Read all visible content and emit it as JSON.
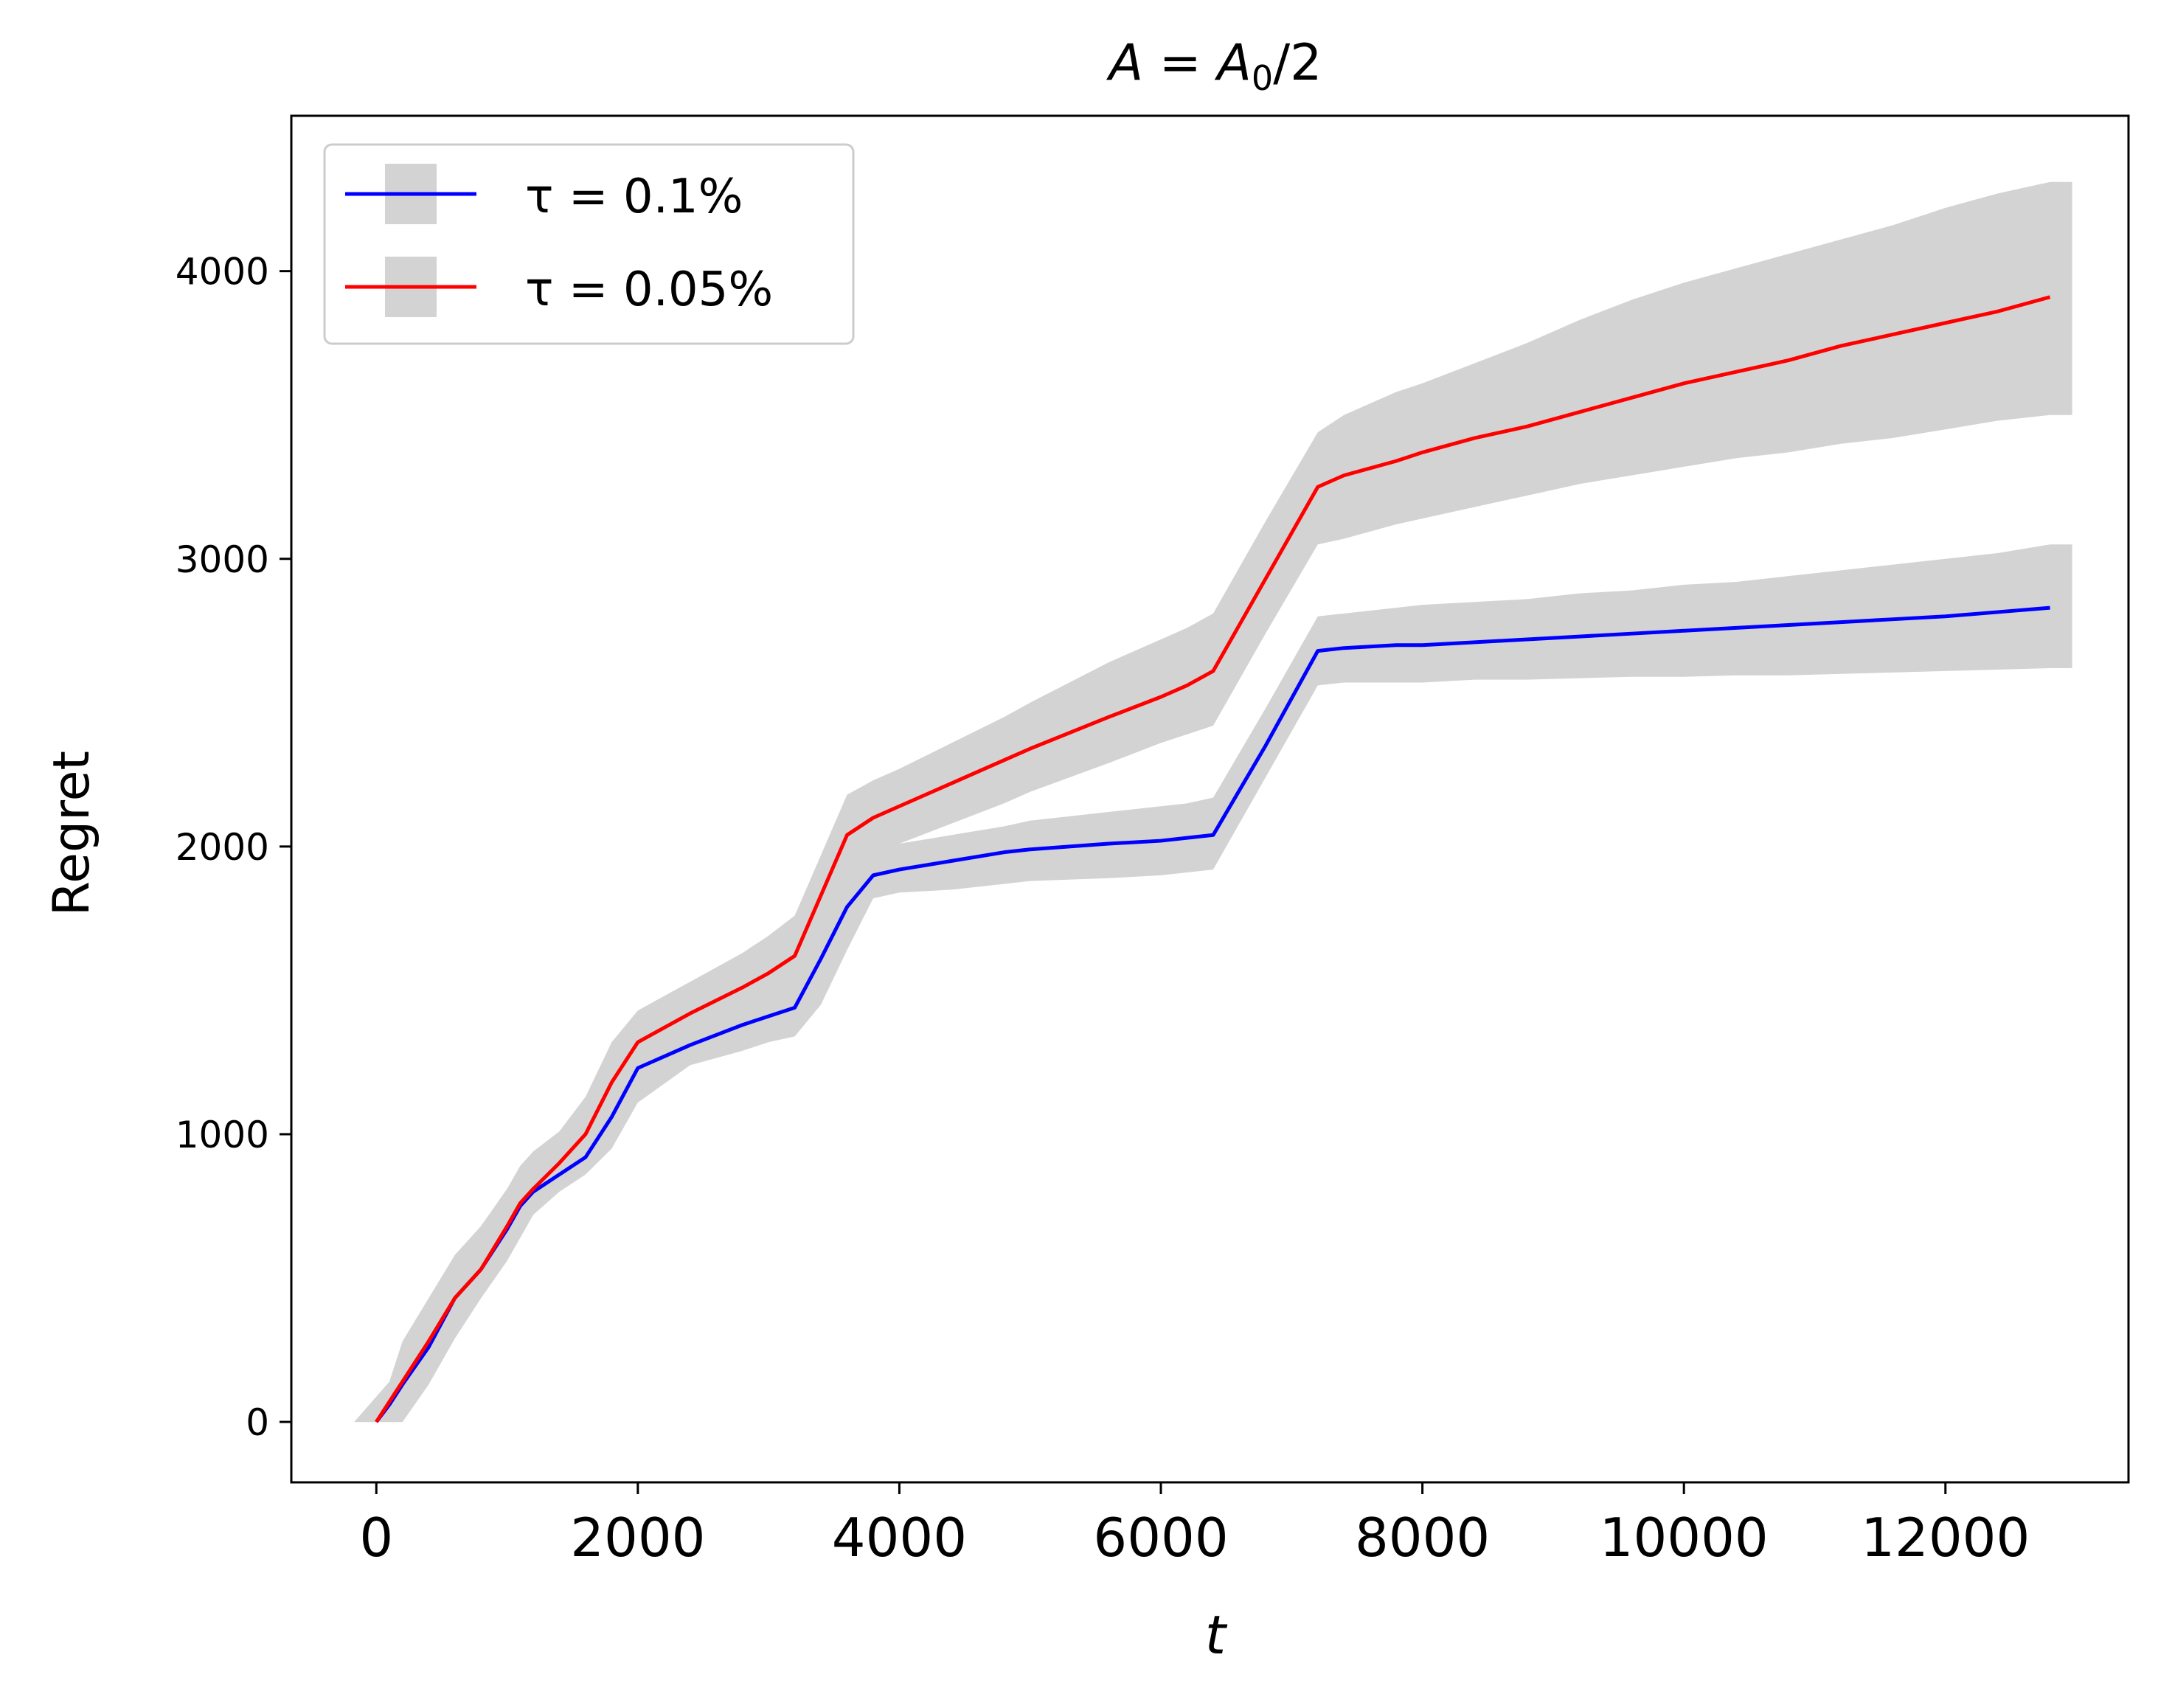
{
  "chart_data": {
    "type": "line",
    "title": "A = A0/2",
    "title_parts": {
      "lhs": "A",
      "rhs_base": "A",
      "rhs_sub": "0",
      "rhs_tail": "/2"
    },
    "xlabel": "t",
    "ylabel": "Regret",
    "xlim": [
      -650,
      13400
    ],
    "ylim": [
      -210,
      4540
    ],
    "x_ticks": [
      0,
      2000,
      4000,
      6000,
      8000,
      10000,
      12000
    ],
    "y_ticks": [
      0,
      1000,
      2000,
      3000,
      4000
    ],
    "grid": false,
    "legend_position": "top-left",
    "band_color": "#d3d3d3",
    "series": [
      {
        "name": "τ = 0.1%",
        "color": "#0000ff",
        "x": [
          0,
          100,
          200,
          400,
          600,
          800,
          1000,
          1100,
          1200,
          1400,
          1600,
          1800,
          2000,
          2400,
          2800,
          3000,
          3200,
          3400,
          3600,
          3800,
          4000,
          4400,
          4800,
          5000,
          5600,
          6000,
          6200,
          6400,
          6800,
          7200,
          7400,
          7800,
          8000,
          8400,
          8800,
          9200,
          9600,
          10000,
          10400,
          10800,
          11200,
          11600,
          12000,
          12400,
          12800
        ],
        "y": [
          0,
          60,
          130,
          260,
          430,
          530,
          670,
          750,
          800,
          860,
          920,
          1060,
          1230,
          1310,
          1380,
          1410,
          1440,
          1610,
          1790,
          1900,
          1920,
          1950,
          1980,
          1990,
          2010,
          2020,
          2030,
          2040,
          2350,
          2680,
          2690,
          2700,
          2700,
          2710,
          2720,
          2730,
          2740,
          2750,
          2760,
          2770,
          2780,
          2790,
          2800,
          2815,
          2830
        ],
        "lower": [
          0,
          0,
          0,
          130,
          290,
          430,
          560,
          640,
          720,
          800,
          860,
          950,
          1110,
          1240,
          1290,
          1320,
          1340,
          1450,
          1640,
          1820,
          1840,
          1850,
          1870,
          1880,
          1890,
          1900,
          1910,
          1920,
          2240,
          2560,
          2570,
          2570,
          2570,
          2580,
          2580,
          2585,
          2590,
          2590,
          2595,
          2595,
          2600,
          2605,
          2610,
          2615,
          2620
        ],
        "upper": [
          0,
          130,
          270,
          400,
          580,
          680,
          810,
          880,
          920,
          980,
          1040,
          1230,
          1370,
          1430,
          1480,
          1510,
          1550,
          1780,
          1940,
          1990,
          2010,
          2040,
          2070,
          2090,
          2120,
          2140,
          2150,
          2170,
          2480,
          2800,
          2810,
          2830,
          2840,
          2850,
          2860,
          2880,
          2890,
          2910,
          2920,
          2940,
          2960,
          2980,
          3000,
          3020,
          3050
        ]
      },
      {
        "name": "τ = 0.05%",
        "color": "#ff0000",
        "x": [
          0,
          100,
          200,
          400,
          600,
          800,
          1000,
          1100,
          1200,
          1400,
          1600,
          1800,
          2000,
          2400,
          2800,
          3000,
          3200,
          3400,
          3600,
          3800,
          4000,
          4400,
          4800,
          5000,
          5600,
          6000,
          6200,
          6400,
          6800,
          7200,
          7400,
          7800,
          8000,
          8400,
          8800,
          9200,
          9600,
          10000,
          10400,
          10800,
          11200,
          11600,
          12000,
          12400,
          12800
        ],
        "y": [
          0,
          70,
          140,
          280,
          430,
          530,
          680,
          760,
          810,
          900,
          1000,
          1180,
          1320,
          1420,
          1510,
          1560,
          1620,
          1830,
          2040,
          2100,
          2140,
          2220,
          2300,
          2340,
          2450,
          2520,
          2560,
          2610,
          2930,
          3250,
          3290,
          3340,
          3370,
          3420,
          3460,
          3510,
          3560,
          3610,
          3650,
          3690,
          3740,
          3780,
          3820,
          3860,
          3910
        ],
        "lower": [
          0,
          0,
          0,
          130,
          290,
          430,
          560,
          640,
          720,
          820,
          900,
          1050,
          1220,
          1300,
          1380,
          1420,
          1460,
          1680,
          1900,
          1980,
          2010,
          2080,
          2150,
          2190,
          2290,
          2360,
          2390,
          2420,
          2740,
          3050,
          3070,
          3120,
          3140,
          3180,
          3220,
          3260,
          3290,
          3320,
          3350,
          3370,
          3400,
          3420,
          3450,
          3480,
          3500
        ],
        "upper": [
          0,
          140,
          280,
          430,
          580,
          680,
          810,
          890,
          940,
          1010,
          1130,
          1320,
          1430,
          1530,
          1630,
          1690,
          1760,
          1970,
          2180,
          2230,
          2270,
          2360,
          2450,
          2500,
          2640,
          2720,
          2760,
          2810,
          3130,
          3440,
          3500,
          3580,
          3610,
          3680,
          3750,
          3830,
          3900,
          3960,
          4010,
          4060,
          4110,
          4160,
          4220,
          4270,
          4310
        ]
      }
    ]
  }
}
